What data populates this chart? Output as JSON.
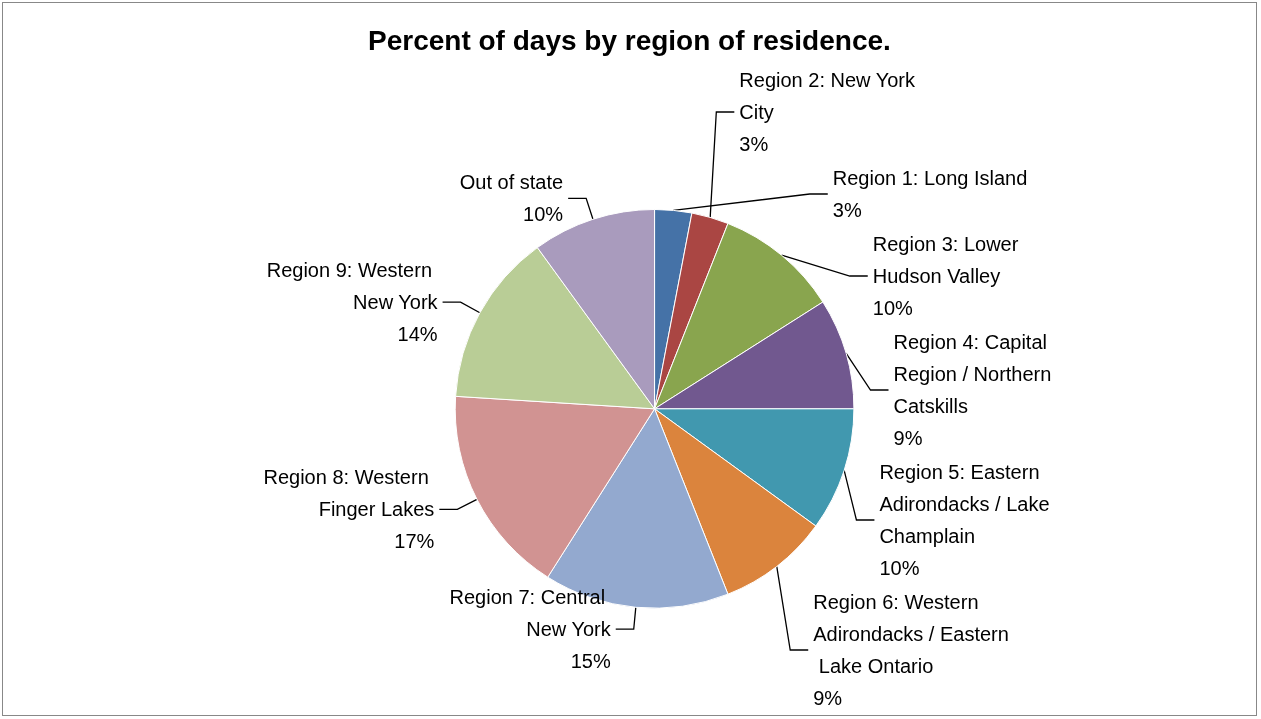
{
  "chart_data": {
    "type": "pie",
    "title": "Percent of days by region of residence.",
    "categories": [
      "Region 1: Long Island",
      "Region 2: New York City",
      "Region 3: Lower Hudson Valley",
      "Region 4: Capital Region / Northern Catskills",
      "Region 5: Eastern Adirondacks / Lake Champlain",
      "Region 6: Western Adirondacks / Eastern Lake Ontario",
      "Region 7: Central New York",
      "Region 8: Western Finger Lakes",
      "Region 9: Western New York",
      "Out of state"
    ],
    "values": [
      3,
      3,
      10,
      9,
      10,
      9,
      15,
      17,
      14,
      10
    ],
    "colors": [
      "#4572a7",
      "#aa4643",
      "#89a54e",
      "#71588f",
      "#4198af",
      "#db843d",
      "#93a9cf",
      "#d19392",
      "#b9cd96",
      "#a99bbd"
    ],
    "value_labels": [
      "3%",
      "3%",
      "10%",
      "9%",
      "10%",
      "9%",
      "15%",
      "17%",
      "14%",
      "10%"
    ],
    "legend": false
  }
}
